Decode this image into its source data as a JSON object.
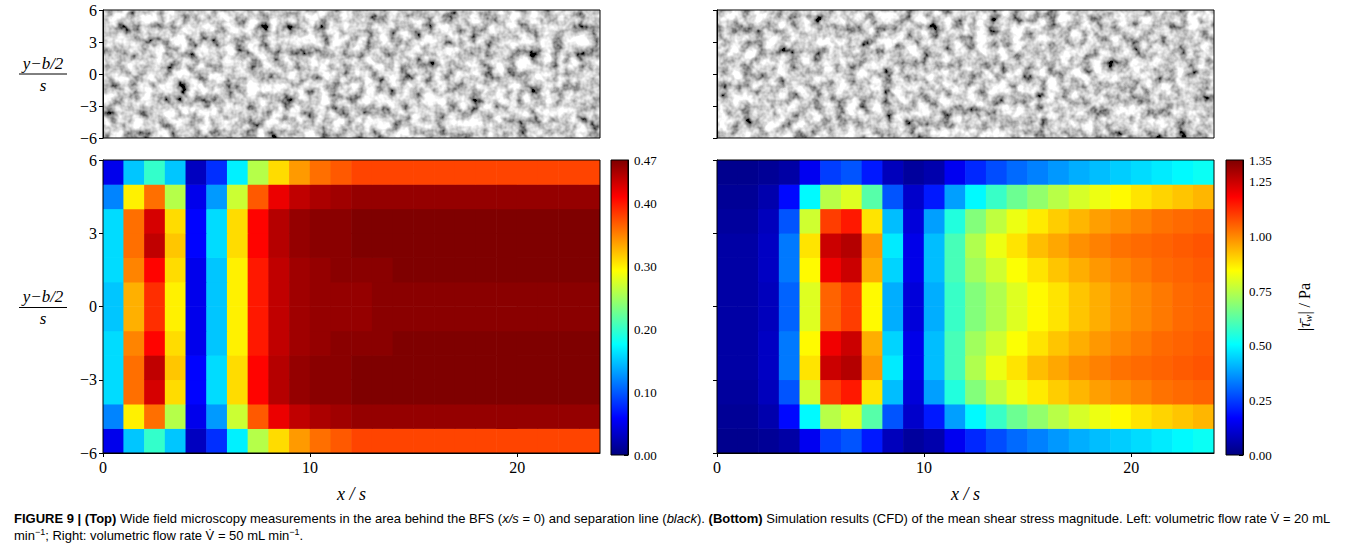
{
  "chart_data": [
    {
      "type": "image",
      "ylim": [
        -6,
        6
      ],
      "yticks": [
        {
          "value": -6,
          "label": "−6"
        },
        {
          "value": -3,
          "label": "−3"
        },
        0,
        3,
        6
      ],
      "tick_labels": "y",
      "ylabel": {
        "numerator": "y−b/2",
        "denominator": "s"
      }
    },
    {
      "type": "image",
      "ylim": [
        -6,
        6
      ],
      "yticks": [
        {
          "value": -6,
          "label": "−6"
        },
        {
          "value": -3,
          "label": "−3"
        },
        0,
        3,
        6
      ],
      "tick_labels": false
    },
    {
      "type": "heatmap",
      "xlim": [
        0,
        24
      ],
      "ylim": [
        -6,
        6
      ],
      "xticks": [
        0,
        10,
        20
      ],
      "yticks": [
        {
          "value": -6,
          "label": "−6"
        },
        {
          "value": -3,
          "label": "−3"
        },
        0,
        3,
        6
      ],
      "xlabel": "x / s",
      "ylabel": {
        "numerator": "y−b/2",
        "denominator": "s"
      },
      "x": [
        0.5,
        1.5,
        2.5,
        3.5,
        4.5,
        5.5,
        6.5,
        7.5,
        8.5,
        9.5,
        10.5,
        11.5,
        12.5,
        13.5,
        14.5,
        15.5,
        16.5,
        17.5,
        18.5,
        19.5,
        20.5,
        21.5,
        22.5,
        23.5
      ],
      "y": [
        -5.5,
        -4.5,
        -3.5,
        -2.5,
        -1.5,
        -0.5,
        0.5,
        1.5,
        2.5,
        3.5,
        4.5,
        5.5
      ],
      "values": [
        [
          0.05,
          0.15,
          0.2,
          0.15,
          0.03,
          0.08,
          0.17,
          0.26,
          0.31,
          0.34,
          0.36,
          0.37,
          0.38,
          0.38,
          0.38,
          0.38,
          0.38,
          0.38,
          0.38,
          0.38,
          0.38,
          0.38,
          0.38,
          0.38
        ],
        [
          0.12,
          0.3,
          0.36,
          0.26,
          0.05,
          0.13,
          0.27,
          0.37,
          0.42,
          0.44,
          0.45,
          0.455,
          0.46,
          0.46,
          0.46,
          0.46,
          0.46,
          0.46,
          0.46,
          0.46,
          0.46,
          0.46,
          0.46,
          0.46
        ],
        [
          0.16,
          0.36,
          0.43,
          0.31,
          0.06,
          0.16,
          0.31,
          0.41,
          0.445,
          0.46,
          0.465,
          0.465,
          0.47,
          0.47,
          0.47,
          0.47,
          0.47,
          0.47,
          0.47,
          0.47,
          0.47,
          0.47,
          0.47,
          0.47
        ],
        [
          0.16,
          0.36,
          0.44,
          0.32,
          0.06,
          0.16,
          0.31,
          0.41,
          0.445,
          0.46,
          0.465,
          0.465,
          0.47,
          0.47,
          0.47,
          0.47,
          0.47,
          0.47,
          0.47,
          0.47,
          0.47,
          0.47,
          0.47,
          0.47
        ],
        [
          0.16,
          0.35,
          0.41,
          0.31,
          0.05,
          0.15,
          0.3,
          0.4,
          0.44,
          0.455,
          0.46,
          0.465,
          0.465,
          0.465,
          0.47,
          0.47,
          0.47,
          0.47,
          0.47,
          0.47,
          0.47,
          0.47,
          0.47,
          0.47
        ],
        [
          0.15,
          0.33,
          0.39,
          0.3,
          0.05,
          0.15,
          0.3,
          0.4,
          0.44,
          0.455,
          0.46,
          0.46,
          0.46,
          0.465,
          0.465,
          0.465,
          0.465,
          0.465,
          0.465,
          0.465,
          0.465,
          0.465,
          0.465,
          0.465
        ],
        [
          0.15,
          0.33,
          0.39,
          0.3,
          0.05,
          0.15,
          0.3,
          0.4,
          0.44,
          0.455,
          0.46,
          0.46,
          0.46,
          0.465,
          0.465,
          0.465,
          0.465,
          0.465,
          0.465,
          0.465,
          0.465,
          0.465,
          0.465,
          0.465
        ],
        [
          0.16,
          0.35,
          0.41,
          0.31,
          0.05,
          0.15,
          0.3,
          0.4,
          0.44,
          0.455,
          0.46,
          0.465,
          0.465,
          0.465,
          0.47,
          0.47,
          0.47,
          0.47,
          0.47,
          0.47,
          0.47,
          0.47,
          0.47,
          0.47
        ],
        [
          0.16,
          0.36,
          0.44,
          0.32,
          0.06,
          0.16,
          0.31,
          0.41,
          0.445,
          0.46,
          0.465,
          0.465,
          0.47,
          0.47,
          0.47,
          0.47,
          0.47,
          0.47,
          0.47,
          0.47,
          0.47,
          0.47,
          0.47,
          0.47
        ],
        [
          0.16,
          0.36,
          0.43,
          0.31,
          0.06,
          0.16,
          0.31,
          0.41,
          0.445,
          0.46,
          0.465,
          0.465,
          0.47,
          0.47,
          0.47,
          0.47,
          0.47,
          0.47,
          0.47,
          0.47,
          0.47,
          0.47,
          0.47,
          0.47
        ],
        [
          0.12,
          0.3,
          0.36,
          0.26,
          0.05,
          0.13,
          0.27,
          0.37,
          0.42,
          0.44,
          0.45,
          0.455,
          0.46,
          0.46,
          0.46,
          0.46,
          0.46,
          0.46,
          0.46,
          0.46,
          0.46,
          0.46,
          0.46,
          0.46
        ],
        [
          0.05,
          0.15,
          0.2,
          0.15,
          0.03,
          0.08,
          0.17,
          0.26,
          0.31,
          0.34,
          0.36,
          0.37,
          0.38,
          0.38,
          0.38,
          0.38,
          0.38,
          0.38,
          0.38,
          0.38,
          0.38,
          0.38,
          0.38,
          0.38
        ]
      ],
      "colorbar": {
        "range": [
          0,
          0.47
        ],
        "ticks": [
          {
            "value": 0,
            "label": "0.00"
          },
          {
            "value": 0.1,
            "label": "0.10"
          },
          {
            "value": 0.2,
            "label": "0.20"
          },
          {
            "value": 0.3,
            "label": "0.30"
          },
          {
            "value": 0.4,
            "label": "0.40"
          },
          {
            "value": 0.47,
            "label": "0.47"
          }
        ]
      }
    },
    {
      "type": "heatmap",
      "xlim": [
        0,
        24
      ],
      "ylim": [
        -6,
        6
      ],
      "xticks": [
        0,
        10,
        20
      ],
      "yticks": [
        {
          "value": -6,
          "label": "−6"
        },
        {
          "value": -3,
          "label": "−3"
        },
        0,
        3,
        6
      ],
      "xlabel": "x / s",
      "tick_labels": "x",
      "x": [
        0.5,
        1.5,
        2.5,
        3.5,
        4.5,
        5.5,
        6.5,
        7.5,
        8.5,
        9.5,
        10.5,
        11.5,
        12.5,
        13.5,
        14.5,
        15.5,
        16.5,
        17.5,
        18.5,
        19.5,
        20.5,
        21.5,
        22.5,
        23.5
      ],
      "y": [
        -5.5,
        -4.5,
        -3.5,
        -2.5,
        -1.5,
        -0.5,
        0.5,
        1.5,
        2.5,
        3.5,
        4.5,
        5.5
      ],
      "values": [
        [
          0.02,
          0.02,
          0.03,
          0.05,
          0.15,
          0.25,
          0.28,
          0.2,
          0.08,
          0.04,
          0.06,
          0.15,
          0.22,
          0.27,
          0.31,
          0.34,
          0.37,
          0.4,
          0.42,
          0.44,
          0.46,
          0.48,
          0.5,
          0.52
        ],
        [
          0.03,
          0.03,
          0.06,
          0.18,
          0.5,
          0.75,
          0.8,
          0.62,
          0.28,
          0.1,
          0.2,
          0.38,
          0.5,
          0.58,
          0.65,
          0.7,
          0.75,
          0.79,
          0.82,
          0.85,
          0.88,
          0.9,
          0.92,
          0.94
        ],
        [
          0.04,
          0.04,
          0.08,
          0.28,
          0.78,
          1.1,
          1.15,
          0.88,
          0.42,
          0.12,
          0.38,
          0.55,
          0.68,
          0.76,
          0.82,
          0.87,
          0.91,
          0.94,
          0.97,
          0.99,
          1.01,
          1.03,
          1.04,
          1.05
        ],
        [
          0.05,
          0.05,
          0.09,
          0.33,
          0.88,
          1.25,
          1.28,
          0.98,
          0.48,
          0.14,
          0.42,
          0.6,
          0.74,
          0.82,
          0.88,
          0.93,
          0.96,
          0.99,
          1.01,
          1.03,
          1.04,
          1.05,
          1.06,
          1.07
        ],
        [
          0.05,
          0.05,
          0.09,
          0.33,
          0.85,
          1.2,
          1.25,
          0.95,
          0.45,
          0.14,
          0.42,
          0.6,
          0.72,
          0.78,
          0.84,
          0.88,
          0.92,
          0.95,
          0.98,
          1.0,
          1.02,
          1.04,
          1.05,
          1.06
        ],
        [
          0.05,
          0.05,
          0.08,
          0.3,
          0.8,
          1.05,
          1.1,
          0.85,
          0.4,
          0.12,
          0.4,
          0.58,
          0.68,
          0.74,
          0.8,
          0.85,
          0.88,
          0.92,
          0.95,
          0.98,
          1.0,
          1.02,
          1.04,
          1.05
        ],
        [
          0.05,
          0.05,
          0.08,
          0.3,
          0.8,
          1.05,
          1.1,
          0.85,
          0.4,
          0.12,
          0.4,
          0.58,
          0.68,
          0.74,
          0.8,
          0.85,
          0.88,
          0.92,
          0.95,
          0.98,
          1.0,
          1.02,
          1.04,
          1.05
        ],
        [
          0.05,
          0.05,
          0.09,
          0.33,
          0.85,
          1.2,
          1.25,
          0.95,
          0.45,
          0.14,
          0.42,
          0.6,
          0.72,
          0.78,
          0.84,
          0.88,
          0.92,
          0.95,
          0.98,
          1.0,
          1.02,
          1.04,
          1.05,
          1.06
        ],
        [
          0.05,
          0.05,
          0.09,
          0.33,
          0.88,
          1.25,
          1.28,
          0.98,
          0.48,
          0.14,
          0.42,
          0.6,
          0.74,
          0.82,
          0.88,
          0.93,
          0.96,
          0.99,
          1.01,
          1.03,
          1.04,
          1.05,
          1.06,
          1.07
        ],
        [
          0.04,
          0.04,
          0.08,
          0.28,
          0.78,
          1.1,
          1.15,
          0.88,
          0.42,
          0.12,
          0.38,
          0.55,
          0.68,
          0.76,
          0.82,
          0.87,
          0.91,
          0.94,
          0.97,
          0.99,
          1.01,
          1.03,
          1.04,
          1.05
        ],
        [
          0.03,
          0.03,
          0.06,
          0.18,
          0.5,
          0.75,
          0.8,
          0.62,
          0.28,
          0.1,
          0.2,
          0.38,
          0.5,
          0.58,
          0.65,
          0.7,
          0.75,
          0.79,
          0.82,
          0.85,
          0.88,
          0.9,
          0.92,
          0.94
        ],
        [
          0.02,
          0.02,
          0.03,
          0.05,
          0.15,
          0.25,
          0.28,
          0.2,
          0.08,
          0.04,
          0.06,
          0.15,
          0.22,
          0.27,
          0.31,
          0.34,
          0.37,
          0.4,
          0.42,
          0.44,
          0.46,
          0.48,
          0.5,
          0.52
        ]
      ],
      "colorbar": {
        "range": [
          0,
          1.35
        ],
        "ticks": [
          {
            "value": 0,
            "label": "0.00"
          },
          {
            "value": 0.25,
            "label": "0.25"
          },
          {
            "value": 0.5,
            "label": "0.50"
          },
          {
            "value": 0.75,
            "label": "0.75"
          },
          {
            "value": 1,
            "label": "1.00"
          },
          {
            "value": 1.25,
            "label": "1.25"
          },
          {
            "value": 1.35,
            "label": "1.35"
          }
        ],
        "label": {
          "symbol": "|τ̄",
          "subscript": "w",
          "rest": "| / Pa"
        }
      }
    }
  ],
  "caption": [
    {
      "text": "FIGURE 9 | ",
      "bold": true
    },
    {
      "text": "(Top)",
      "bold": true
    },
    {
      "text": " Wide field microscopy measurements in the area behind the BFS ("
    },
    {
      "text": "x/s",
      "italic": true
    },
    {
      "text": " = 0) and separation line ("
    },
    {
      "text": "black",
      "italic": true
    },
    {
      "text": "). "
    },
    {
      "text": "(Bottom)",
      "bold": true
    },
    {
      "text": " Simulation results (CFD) of the mean shear stress magnitude. Left: volumetric flow rate V̇ = 20 mL min"
    },
    {
      "text": "−1",
      "sup": true
    },
    {
      "text": "; Right: volumetric flow rate V̇ = 50 mL min"
    },
    {
      "text": "−1",
      "sup": true
    },
    {
      "text": "."
    }
  ]
}
